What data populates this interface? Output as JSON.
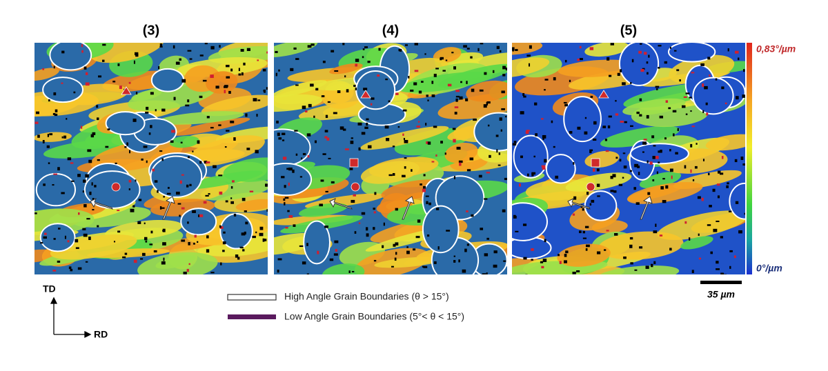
{
  "panels": [
    {
      "title": "(3)"
    },
    {
      "title": "(4)"
    },
    {
      "title": "(5)"
    }
  ],
  "colorbar": {
    "max_label": "0,83°/µm",
    "min_label": "0°/µm"
  },
  "scale_bar": {
    "label": "35 µm"
  },
  "legend": [
    {
      "label": "High Angle Grain Boundaries (θ > 15°)"
    },
    {
      "label": "Low Angle Grain Boundaries (5°< θ < 15°)"
    }
  ],
  "axes": {
    "vertical": "TD",
    "horizontal": "RD"
  }
}
